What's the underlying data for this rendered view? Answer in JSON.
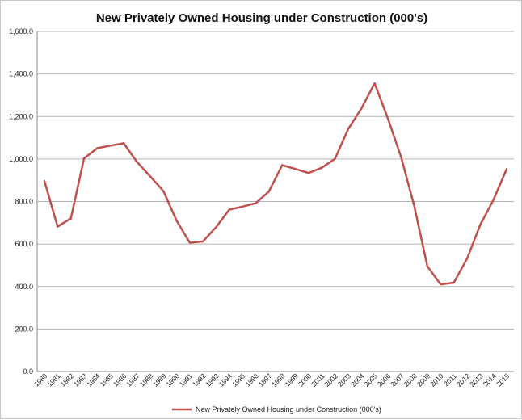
{
  "chart_data": {
    "type": "line",
    "title": "New Privately Owned Housing under Construction (000's)",
    "xlabel": "",
    "ylabel": "",
    "ylim": [
      0,
      1600
    ],
    "y_ticks": [
      "0.0",
      "200.0",
      "400.0",
      "600.0",
      "800.0",
      "1,000.0",
      "1,200.0",
      "1,400.0",
      "1,600.0"
    ],
    "grid": true,
    "legend_position": "bottom",
    "series_color": "#c0504d",
    "categories": [
      "1980",
      "1981",
      "1982",
      "1983",
      "1984",
      "1985",
      "1986",
      "1987",
      "1988",
      "1989",
      "1990",
      "1991",
      "1992",
      "1993",
      "1994",
      "1995",
      "1996",
      "1997",
      "1998",
      "1999",
      "2000",
      "2001",
      "2002",
      "2003",
      "2004",
      "2005",
      "2006",
      "2007",
      "2008",
      "2009",
      "2010",
      "2011",
      "2012",
      "2013",
      "2014",
      "2015"
    ],
    "series": [
      {
        "name": "New Privately Owned Housing under Construction (000's)",
        "values": [
          896,
          682,
          720,
          1003,
          1051,
          1063,
          1074,
          987,
          919,
          850,
          711,
          606,
          612,
          680,
          762,
          776,
          792,
          847,
          971,
          953,
          934,
          959,
          1001,
          1141,
          1237,
          1356,
          1192,
          1010,
          780,
          495,
          410,
          418,
          531,
          690,
          808,
          953
        ]
      }
    ]
  }
}
